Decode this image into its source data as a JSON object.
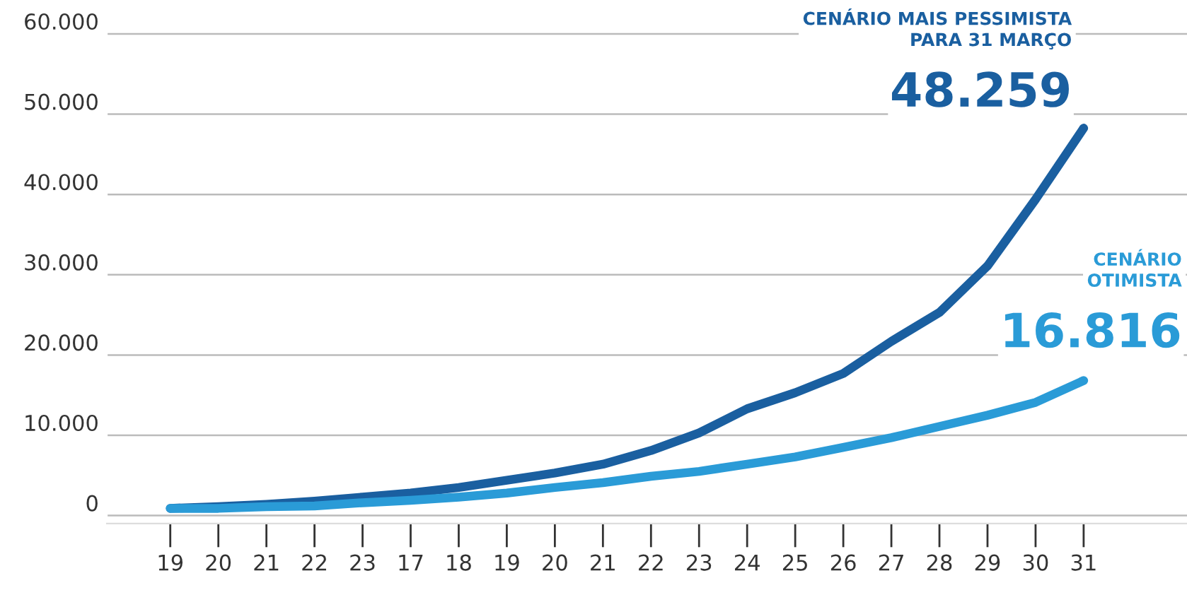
{
  "chart_data": {
    "type": "line",
    "categories": [
      "19",
      "20",
      "21",
      "22",
      "23",
      "17",
      "18",
      "19",
      "20",
      "21",
      "22",
      "23",
      "24",
      "25",
      "26",
      "27",
      "28",
      "29",
      "30",
      "31"
    ],
    "series": [
      {
        "name": "CENÁRIO MAIS PESSIMISTA\nPARA 31 MARÇO",
        "color": "#1a5fa0",
        "values": [
          900,
          1100,
          1400,
          1800,
          2300,
          2800,
          3500,
          4400,
          5300,
          6400,
          8100,
          10300,
          13300,
          15300,
          17700,
          21700,
          25300,
          31100,
          39400,
          48259
        ],
        "value_labels": [
          null,
          null,
          null,
          null,
          null,
          null,
          null,
          null,
          null,
          null,
          null,
          null,
          null,
          null,
          null,
          null,
          null,
          null,
          null,
          "48.259"
        ]
      },
      {
        "name": "CENÁRIO\nOTIMISTA",
        "color": "#2a9bd7",
        "values": [
          900,
          900,
          1100,
          1200,
          1600,
          1900,
          2300,
          2800,
          3500,
          4100,
          4900,
          5500,
          6400,
          7300,
          8500,
          9700,
          11100,
          12500,
          14100,
          16816
        ],
        "value_labels": [
          null,
          null,
          null,
          null,
          null,
          null,
          null,
          null,
          null,
          null,
          null,
          null,
          null,
          null,
          null,
          null,
          null,
          null,
          null,
          "16.816"
        ]
      }
    ],
    "ylim": [
      -1000,
      62000
    ],
    "yticks": [
      0,
      {
        "value": 10000,
        "label": "10.000"
      },
      {
        "value": 20000,
        "label": "20.000"
      },
      {
        "value": 30000,
        "label": "30.000"
      },
      {
        "value": 40000,
        "label": "40.000"
      },
      {
        "value": 50000,
        "label": "50.000"
      },
      {
        "value": 60000,
        "label": "60.000"
      }
    ],
    "grid": "y",
    "marker": "none",
    "line_style": "solid"
  }
}
